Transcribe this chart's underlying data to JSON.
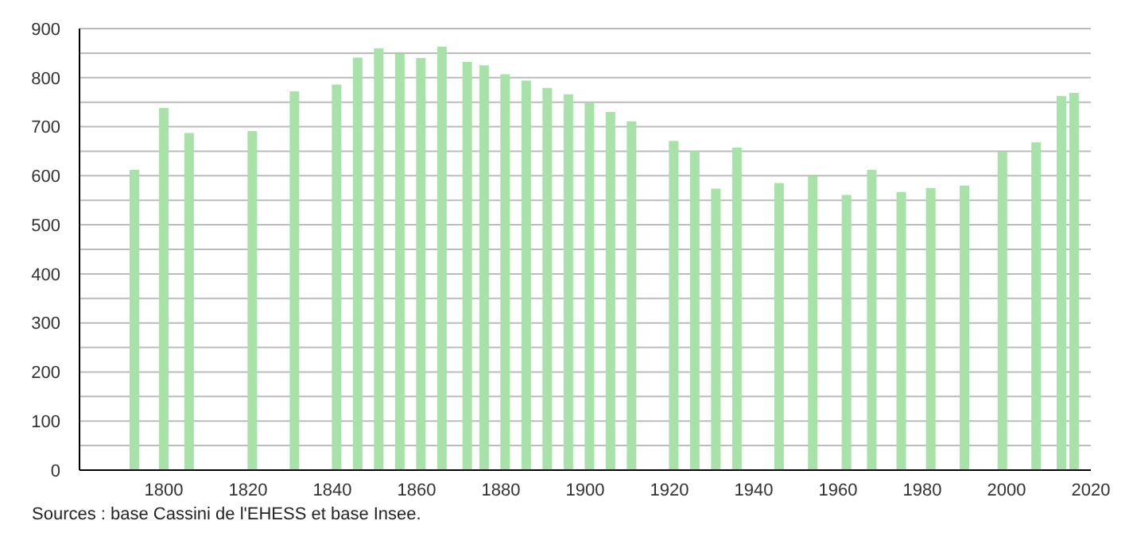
{
  "chart_data": {
    "type": "bar",
    "x": [
      1793,
      1800,
      1806,
      1821,
      1831,
      1841,
      1846,
      1851,
      1856,
      1861,
      1866,
      1872,
      1876,
      1881,
      1886,
      1891,
      1896,
      1901,
      1906,
      1911,
      1921,
      1926,
      1931,
      1936,
      1946,
      1954,
      1962,
      1968,
      1975,
      1982,
      1990,
      1999,
      2007,
      2013,
      2016
    ],
    "values": [
      612,
      738,
      687,
      691,
      772,
      786,
      841,
      860,
      848,
      840,
      863,
      832,
      825,
      807,
      794,
      779,
      766,
      749,
      730,
      711,
      671,
      650,
      574,
      657,
      585,
      599,
      561,
      612,
      567,
      575,
      580,
      649,
      668,
      763,
      769
    ],
    "color": "#a8e2a8",
    "xlim": [
      1780,
      2020
    ],
    "xticks": [
      1800,
      1820,
      1840,
      1860,
      1880,
      1900,
      1920,
      1940,
      1960,
      1980,
      2000,
      2020
    ],
    "ylim": [
      0,
      900
    ],
    "yticks": [
      0,
      {
        "value": 50,
        "label": null
      },
      100,
      {
        "value": 150,
        "label": null
      },
      200,
      {
        "value": 250,
        "label": null
      },
      300,
      {
        "value": 350,
        "label": null
      },
      400,
      {
        "value": 450,
        "label": null
      },
      500,
      {
        "value": 550,
        "label": null
      },
      600,
      {
        "value": 650,
        "label": null
      },
      700,
      {
        "value": 750,
        "label": null
      },
      800,
      {
        "value": 850,
        "label": null
      },
      900
    ],
    "grid": "y",
    "annotations": [
      "Sources : base Cassini de l'EHESS et base Insee."
    ]
  }
}
